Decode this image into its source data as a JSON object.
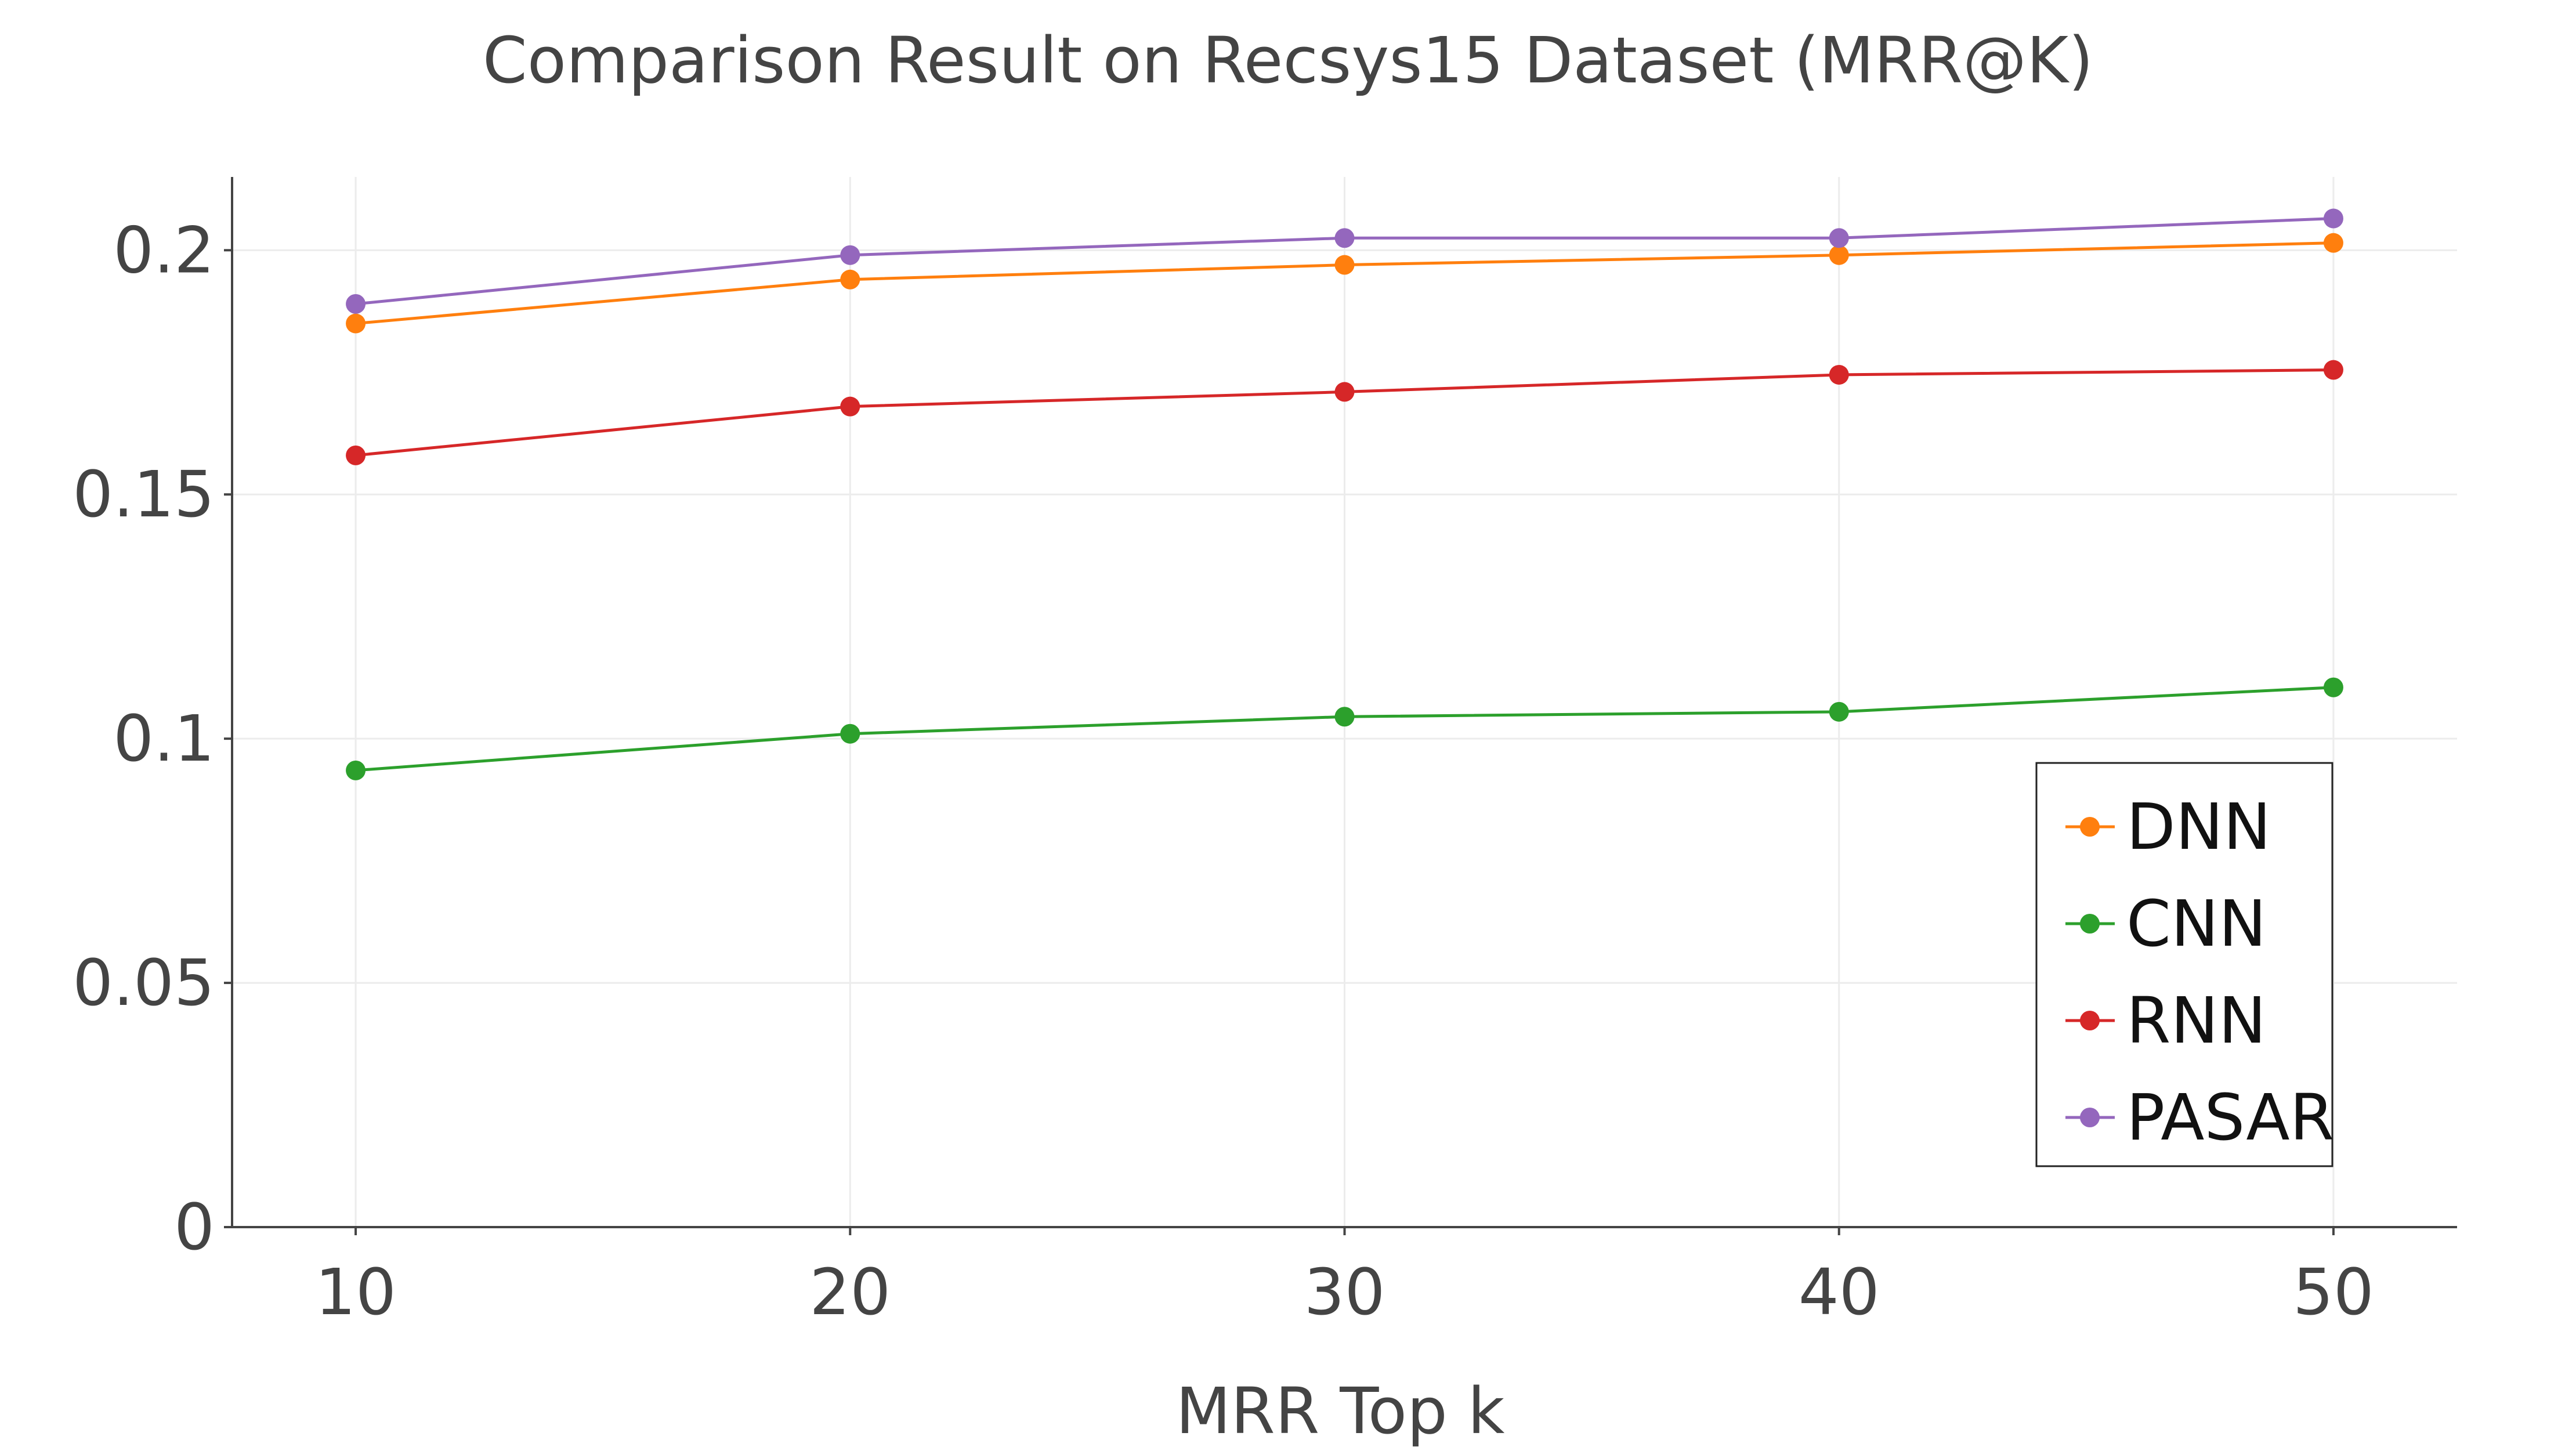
{
  "chart_data": {
    "type": "line",
    "title": "Comparison Result on Recsys15 Dataset (MRR@K)",
    "xlabel": "MRR Top k",
    "ylabel": "",
    "x": [
      10,
      20,
      30,
      40,
      50
    ],
    "x_tick_labels": [
      "10",
      "20",
      "30",
      "40",
      "50"
    ],
    "xlim": [
      7.5,
      52.5
    ],
    "ylim": [
      0,
      0.215
    ],
    "y_ticks": [
      0,
      0.05,
      0.1,
      0.15,
      0.2
    ],
    "y_tick_labels": [
      "0",
      "0.05",
      "0.1",
      "0.15",
      "0.2"
    ],
    "grid": true,
    "legend_position": "bottom-right",
    "series": [
      {
        "name": "DNN",
        "color": "#ff7f0e",
        "values": [
          0.185,
          0.194,
          0.197,
          0.199,
          0.2015
        ]
      },
      {
        "name": "CNN",
        "color": "#2ca02c",
        "values": [
          0.0935,
          0.101,
          0.1045,
          0.1055,
          0.1105
        ]
      },
      {
        "name": "RNN",
        "color": "#d62728",
        "values": [
          0.158,
          0.168,
          0.171,
          0.1745,
          0.1755
        ]
      },
      {
        "name": "PASAR",
        "color": "#9467bd",
        "values": [
          0.189,
          0.199,
          0.2025,
          0.2025,
          0.2065
        ]
      }
    ]
  }
}
